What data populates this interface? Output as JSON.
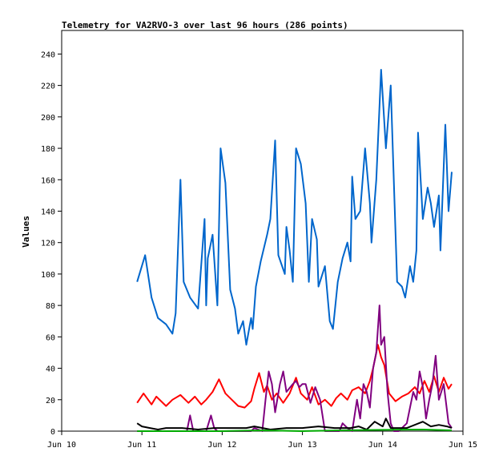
{
  "chart_data": {
    "type": "line",
    "title": "Telemetry for VA2RVO-3 over last 96 hours (286 points)",
    "xlabel": "",
    "ylabel": "Values",
    "x_axis": {
      "unit": "days",
      "range": [
        "Jun 10",
        "Jun 15"
      ],
      "ticks": [
        "Jun 10",
        "Jun 11",
        "Jun 12",
        "Jun 13",
        "Jun 14",
        "Jun 15"
      ]
    },
    "ylim": [
      0,
      255
    ],
    "yticks": [
      0,
      20,
      40,
      60,
      80,
      100,
      120,
      140,
      160,
      180,
      200,
      220,
      240
    ],
    "grid": false,
    "series": [
      {
        "color": "#0066cc",
        "x": [
          10.94,
          11.04,
          11.12,
          11.2,
          11.3,
          11.38,
          11.42,
          11.48,
          11.52,
          11.6,
          11.7,
          11.78,
          11.8,
          11.82,
          11.88,
          11.94,
          11.98,
          12.04,
          12.1,
          12.16,
          12.2,
          12.26,
          12.3,
          12.36,
          12.38,
          12.42,
          12.48,
          12.56,
          12.6,
          12.66,
          12.7,
          12.78,
          12.8,
          12.84,
          12.88,
          12.92,
          12.98,
          13.04,
          13.08,
          13.12,
          13.18,
          13.2,
          13.28,
          13.34,
          13.38,
          13.44,
          13.5,
          13.56,
          13.6,
          13.62,
          13.66,
          13.72,
          13.78,
          13.84,
          13.86,
          13.92,
          13.98,
          14.04,
          14.1,
          14.18,
          14.24,
          14.28,
          14.34,
          14.38,
          14.42,
          14.44,
          14.5,
          14.56,
          14.6,
          14.64,
          14.7,
          14.72,
          14.78,
          14.82,
          14.86
        ],
        "values": [
          95,
          112,
          85,
          72,
          68,
          62,
          75,
          160,
          95,
          85,
          78,
          135,
          80,
          110,
          125,
          80,
          180,
          158,
          90,
          78,
          62,
          70,
          55,
          72,
          65,
          92,
          108,
          125,
          135,
          185,
          112,
          100,
          130,
          115,
          95,
          180,
          170,
          145,
          95,
          135,
          122,
          92,
          105,
          70,
          65,
          95,
          110,
          120,
          108,
          162,
          135,
          140,
          180,
          145,
          120,
          160,
          230,
          180,
          220,
          95,
          92,
          85,
          105,
          95,
          115,
          190,
          135,
          155,
          145,
          130,
          150,
          115,
          195,
          140,
          165
        ]
      },
      {
        "color": "#ff0000",
        "x": [
          10.94,
          11.02,
          11.12,
          11.18,
          11.3,
          11.38,
          11.48,
          11.58,
          11.66,
          11.74,
          11.8,
          11.88,
          11.96,
          12.04,
          12.12,
          12.2,
          12.28,
          12.36,
          12.4,
          12.46,
          12.52,
          12.56,
          12.62,
          12.68,
          12.76,
          12.84,
          12.92,
          12.98,
          13.06,
          13.12,
          13.2,
          13.28,
          13.36,
          13.42,
          13.48,
          13.56,
          13.62,
          13.7,
          13.78,
          13.84,
          13.88,
          13.94,
          13.98,
          14.02,
          14.08,
          14.16,
          14.24,
          14.32,
          14.4,
          14.46,
          14.52,
          14.58,
          14.64,
          14.7,
          14.76,
          14.82,
          14.86
        ],
        "values": [
          18,
          24,
          17,
          22,
          16,
          20,
          23,
          18,
          22,
          17,
          20,
          25,
          33,
          24,
          20,
          16,
          15,
          19,
          27,
          37,
          25,
          29,
          20,
          24,
          18,
          24,
          34,
          24,
          20,
          28,
          17,
          20,
          16,
          21,
          24,
          20,
          26,
          28,
          24,
          32,
          40,
          55,
          47,
          42,
          24,
          19,
          22,
          24,
          28,
          24,
          32,
          25,
          35,
          25,
          34,
          27,
          30
        ]
      },
      {
        "color": "#800080",
        "x": [
          10.94,
          11.2,
          11.4,
          11.56,
          11.6,
          11.64,
          11.8,
          11.86,
          11.9,
          11.94,
          12.2,
          12.3,
          12.36,
          12.4,
          12.5,
          12.54,
          12.58,
          12.62,
          12.66,
          12.72,
          12.76,
          12.8,
          12.88,
          12.92,
          12.96,
          13.0,
          13.04,
          13.1,
          13.16,
          13.22,
          13.28,
          13.4,
          13.46,
          13.5,
          13.56,
          13.62,
          13.68,
          13.72,
          13.76,
          13.8,
          13.84,
          13.88,
          13.92,
          13.94,
          13.96,
          13.98,
          14.02,
          14.06,
          14.1,
          14.14,
          14.2,
          14.3,
          14.38,
          14.42,
          14.46,
          14.5,
          14.54,
          14.58,
          14.62,
          14.66,
          14.7,
          14.76,
          14.82,
          14.86
        ],
        "values": [
          0,
          0,
          0,
          0,
          10,
          0,
          0,
          10,
          2,
          0,
          0,
          0,
          0,
          2,
          0,
          20,
          38,
          30,
          12,
          30,
          38,
          25,
          30,
          32,
          28,
          30,
          30,
          18,
          28,
          20,
          0,
          0,
          0,
          5,
          2,
          0,
          20,
          8,
          30,
          25,
          15,
          40,
          50,
          65,
          80,
          55,
          60,
          25,
          5,
          0,
          0,
          5,
          25,
          20,
          38,
          28,
          8,
          20,
          30,
          48,
          20,
          30,
          5,
          2
        ]
      },
      {
        "color": "#000000",
        "x": [
          10.94,
          11.0,
          11.1,
          11.2,
          11.3,
          11.5,
          11.7,
          11.9,
          12.1,
          12.3,
          12.4,
          12.6,
          12.8,
          13.0,
          13.2,
          13.4,
          13.6,
          13.7,
          13.8,
          13.9,
          14.0,
          14.04,
          14.1,
          14.3,
          14.5,
          14.6,
          14.7,
          14.8,
          14.86
        ],
        "values": [
          5,
          3,
          2,
          1,
          2,
          2,
          1,
          2,
          2,
          2,
          3,
          1,
          2,
          2,
          3,
          2,
          2,
          3,
          1,
          6,
          3,
          8,
          2,
          2,
          6,
          3,
          4,
          3,
          2
        ]
      },
      {
        "color": "#00aa00",
        "x": [
          10.94,
          11.5,
          12.0,
          12.5,
          13.0,
          13.5,
          14.0,
          14.5,
          14.86
        ],
        "values": [
          0,
          0,
          0,
          0.5,
          0,
          0.5,
          0.8,
          1,
          0.5
        ]
      }
    ]
  }
}
